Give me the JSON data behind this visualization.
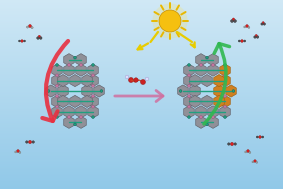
{
  "bg_color_top": "#d0e8f5",
  "bg_color_bottom": "#90c8e8",
  "sun_color": "#f5c518",
  "sun_ray_color": "#e8b800",
  "lightning_color": "#e8cc00",
  "arrow_pink_color": "#d070a0",
  "arrow_red_color": "#e83040",
  "arrow_green_color": "#30b850",
  "node_teal_color": "#20a080",
  "node_pink_color": "#c878a0",
  "ring_gray_color": "#909098",
  "ring_edge_color": "#606068",
  "teal_edge_color": "#107060",
  "orange_ring_color": "#d08020",
  "orange_ring_edge": "#a06010",
  "molecule_red": "#dd2020",
  "molecule_dark": "#505055",
  "molecule_orange_red": "#cc4420"
}
